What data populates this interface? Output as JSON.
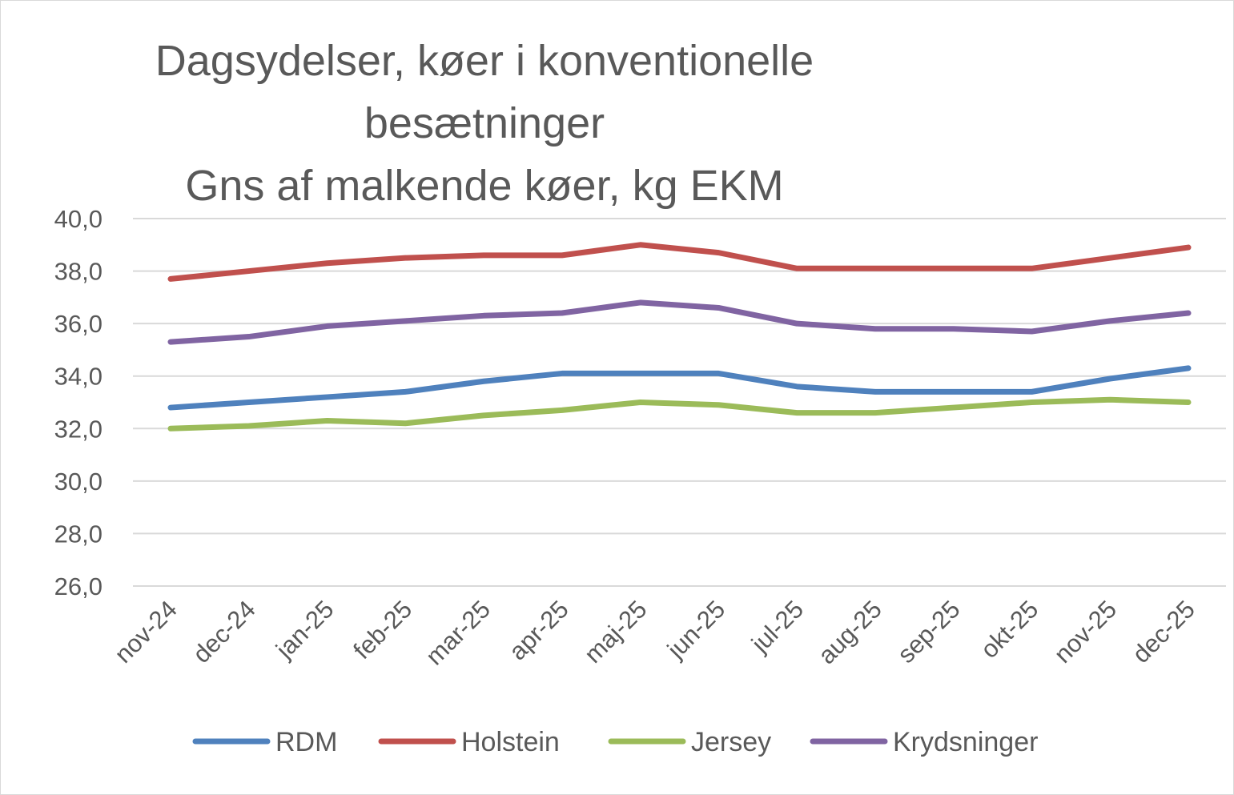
{
  "chart_data": {
    "type": "line",
    "title": [
      "Dagsydelser, køer i konventionelle",
      "besætninger",
      "Gns af malkende køer, kg EKM"
    ],
    "xlabel": "",
    "ylabel": "",
    "categories": [
      "nov-24",
      "dec-24",
      "jan-25",
      "feb-25",
      "mar-25",
      "apr-25",
      "maj-25",
      "jun-25",
      "jul-25",
      "aug-25",
      "sep-25",
      "okt-25",
      "nov-25",
      "dec-25"
    ],
    "ylim": [
      26,
      40
    ],
    "yticks": [
      "26,0",
      "28,0",
      "30,0",
      "32,0",
      "34,0",
      "36,0",
      "38,0",
      "40,0"
    ],
    "grid": true,
    "legend_position": "bottom",
    "series": [
      {
        "name": "RDM",
        "color": "#4f81bd",
        "values": [
          32.8,
          33.0,
          33.2,
          33.4,
          33.8,
          34.1,
          34.1,
          34.1,
          33.6,
          33.4,
          33.4,
          33.4,
          33.9,
          34.3
        ]
      },
      {
        "name": "Holstein",
        "color": "#c0504d",
        "values": [
          37.7,
          38.0,
          38.3,
          38.5,
          38.6,
          38.6,
          39.0,
          38.7,
          38.1,
          38.1,
          38.1,
          38.1,
          38.5,
          38.9
        ]
      },
      {
        "name": "Jersey",
        "color": "#9bbb59",
        "values": [
          32.0,
          32.1,
          32.3,
          32.2,
          32.5,
          32.7,
          33.0,
          32.9,
          32.6,
          32.6,
          32.8,
          33.0,
          33.1,
          33.0
        ]
      },
      {
        "name": "Krydsninger",
        "color": "#8064a2",
        "values": [
          35.3,
          35.5,
          35.9,
          36.1,
          36.3,
          36.4,
          36.8,
          36.6,
          36.0,
          35.8,
          35.8,
          35.7,
          36.1,
          36.4
        ]
      }
    ]
  }
}
